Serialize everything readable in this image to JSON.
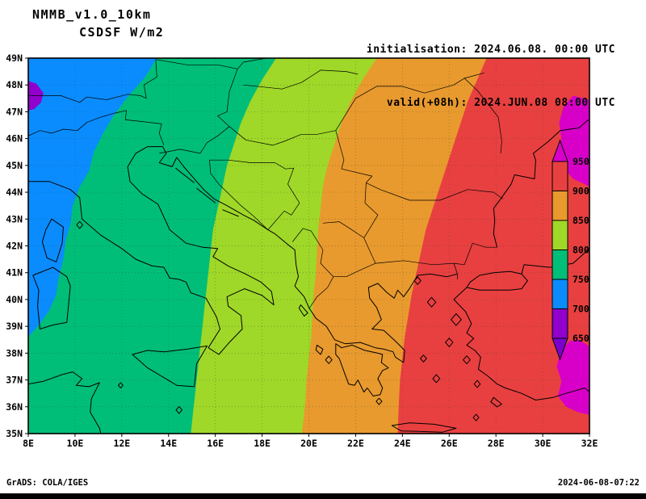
{
  "header": {
    "model_title": "NMMB_v1.0_10km",
    "variable_title": "CSDSF W/m2",
    "init_line": "initialisation: 2024.06.08. 00:00 UTC",
    "valid_line": "valid(+08h): 2024.JUN.08 08:00 UTC"
  },
  "footer": {
    "credit": "GrADS: COLA/IGES",
    "timestamp": "2024-06-08-07:22"
  },
  "chart_data": {
    "type": "heatmap",
    "title": "NMMB_v1.0_10km CSDSF W/m2",
    "variable": "CSDSF",
    "units": "W/m2",
    "initialisation": "2024.06.08. 00:00 UTC",
    "valid": "valid(+08h): 2024.JUN.08 08:00 UTC",
    "lon_range": [
      8,
      32
    ],
    "lat_range": [
      35,
      49
    ],
    "lon_ticks": [
      "8E",
      "10E",
      "12E",
      "14E",
      "16E",
      "18E",
      "20E",
      "22E",
      "24E",
      "26E",
      "28E",
      "30E",
      "32E"
    ],
    "lat_ticks": [
      "49N",
      "48N",
      "47N",
      "46N",
      "45N",
      "44N",
      "43N",
      "42N",
      "41N",
      "40N",
      "39N",
      "38N",
      "37N",
      "36N",
      "35N"
    ],
    "grid": "dotted",
    "legend_position": "right-inside",
    "field_description": "Clear-sky downward shortwave flux increasing from west (650-700 W/m2, NW corner below 700) to east (above 950 W/m2 near the eastern edge)",
    "colorbar": {
      "levels": [
        650,
        700,
        750,
        800,
        850,
        900,
        950
      ],
      "bins": [
        {
          "range": "< 650",
          "name": "dark-purple",
          "color": "#7a00cc"
        },
        {
          "range": "650-700",
          "name": "purple",
          "color": "#9100cc"
        },
        {
          "range": "700-750",
          "name": "blue",
          "color": "#0a8cff"
        },
        {
          "range": "750-800",
          "name": "green",
          "color": "#00be78"
        },
        {
          "range": "800-850",
          "name": "yellow-green",
          "color": "#9fd828"
        },
        {
          "range": "850-900",
          "name": "orange",
          "color": "#e89a2e"
        },
        {
          "range": "900-950",
          "name": "red",
          "color": "#e84040"
        },
        {
          "range": "> 950",
          "name": "magenta",
          "color": "#d800c8"
        }
      ]
    },
    "field": {
      "base_bin": 6,
      "isolines": [
        {
          "level": 750,
          "fill_bin": 2,
          "points": [
            [
              13.5,
              49
            ],
            [
              13.0,
              48.3
            ],
            [
              12.2,
              47.5
            ],
            [
              11.6,
              46.8
            ],
            [
              11.2,
              46.2
            ],
            [
              10.8,
              45.5
            ],
            [
              10.6,
              44.8
            ],
            [
              10.2,
              44.2
            ],
            [
              9.9,
              43.5
            ],
            [
              9.8,
              42.8
            ],
            [
              9.6,
              42.2
            ],
            [
              9.5,
              41.5
            ],
            [
              9.3,
              40.8
            ],
            [
              9.2,
              40.2
            ],
            [
              8.9,
              39.6
            ],
            [
              8.5,
              39.1
            ],
            [
              8.0,
              38.6
            ]
          ]
        },
        {
          "level": 800,
          "fill_bin": 3,
          "points": [
            [
              18.6,
              49
            ],
            [
              18.0,
              48.2
            ],
            [
              17.5,
              47.4
            ],
            [
              17.1,
              46.6
            ],
            [
              16.8,
              45.8
            ],
            [
              16.5,
              45.0
            ],
            [
              16.3,
              44.2
            ],
            [
              16.1,
              43.4
            ],
            [
              15.9,
              42.6
            ],
            [
              15.8,
              41.8
            ],
            [
              15.7,
              41.0
            ],
            [
              15.6,
              40.2
            ],
            [
              15.5,
              39.4
            ],
            [
              15.4,
              38.6
            ],
            [
              15.3,
              37.8
            ],
            [
              15.2,
              37.0
            ],
            [
              15.1,
              36.2
            ],
            [
              15.0,
              35.4
            ],
            [
              14.95,
              35
            ]
          ]
        },
        {
          "level": 850,
          "fill_bin": 4,
          "points": [
            [
              22.9,
              49
            ],
            [
              22.3,
              48.2
            ],
            [
              21.8,
              47.4
            ],
            [
              21.4,
              46.6
            ],
            [
              21.1,
              45.8
            ],
            [
              20.8,
              45.0
            ],
            [
              20.6,
              44.2
            ],
            [
              20.5,
              43.4
            ],
            [
              20.4,
              42.6
            ],
            [
              20.35,
              41.8
            ],
            [
              20.3,
              41.0
            ],
            [
              20.2,
              40.2
            ],
            [
              20.15,
              39.4
            ],
            [
              20.1,
              38.6
            ],
            [
              20.0,
              37.8
            ],
            [
              19.9,
              37.0
            ],
            [
              19.85,
              36.2
            ],
            [
              19.7,
              35
            ]
          ]
        },
        {
          "level": 900,
          "fill_bin": 5,
          "points": [
            [
              27.6,
              49
            ],
            [
              27.2,
              48.2
            ],
            [
              26.8,
              47.4
            ],
            [
              26.5,
              46.6
            ],
            [
              26.2,
              45.8
            ],
            [
              25.9,
              45.0
            ],
            [
              25.6,
              44.2
            ],
            [
              25.3,
              43.4
            ],
            [
              25.0,
              42.6
            ],
            [
              24.8,
              41.8
            ],
            [
              24.6,
              41.0
            ],
            [
              24.4,
              40.2
            ],
            [
              24.25,
              39.4
            ],
            [
              24.1,
              38.6
            ],
            [
              24.0,
              37.8
            ],
            [
              23.9,
              37.0
            ],
            [
              23.85,
              36.2
            ],
            [
              23.8,
              35
            ]
          ]
        }
      ],
      "closed_regions": [
        {
          "bin": 1,
          "label": "650-700 NW corner",
          "points": [
            [
              8,
              48.15
            ],
            [
              8.35,
              48.05
            ],
            [
              8.65,
              47.7
            ],
            [
              8.55,
              47.35
            ],
            [
              8.25,
              47.1
            ],
            [
              8,
              47.05
            ]
          ]
        },
        {
          "bin": 7,
          "label": "> 950 east-north",
          "points": [
            [
              31.3,
              47.6
            ],
            [
              30.9,
              47.2
            ],
            [
              30.7,
              46.6
            ],
            [
              30.8,
              46.0
            ],
            [
              30.65,
              45.4
            ],
            [
              30.9,
              44.9
            ],
            [
              31.3,
              44.5
            ],
            [
              31.8,
              44.3
            ],
            [
              32,
              44.2
            ],
            [
              32,
              47.45
            ]
          ]
        },
        {
          "bin": 7,
          "label": "> 950 east-south",
          "points": [
            [
              31.15,
              38.45
            ],
            [
              30.75,
              38.05
            ],
            [
              30.6,
              37.5
            ],
            [
              30.8,
              36.95
            ],
            [
              30.65,
              36.4
            ],
            [
              31.0,
              36.0
            ],
            [
              31.5,
              35.8
            ],
            [
              32,
              35.7
            ],
            [
              32,
              38.25
            ],
            [
              31.55,
              38.5
            ]
          ]
        }
      ]
    }
  }
}
